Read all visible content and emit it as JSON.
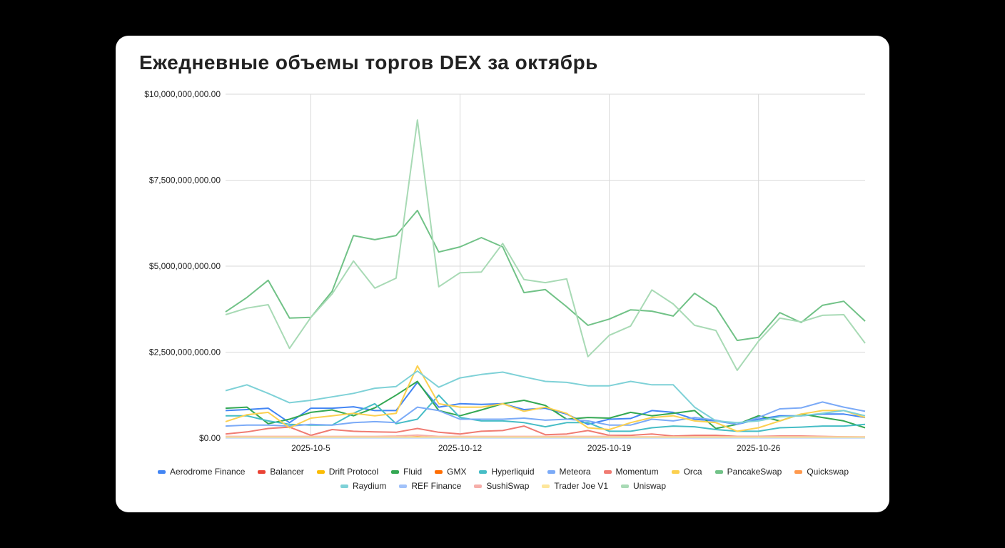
{
  "chart_data": {
    "type": "line",
    "title": "Ежедневные объемы торгов DEX за октябрь",
    "x": [
      "2025-10-1",
      "2025-10-2",
      "2025-10-3",
      "2025-10-4",
      "2025-10-5",
      "2025-10-6",
      "2025-10-7",
      "2025-10-8",
      "2025-10-9",
      "2025-10-10",
      "2025-10-11",
      "2025-10-12",
      "2025-10-13",
      "2025-10-14",
      "2025-10-15",
      "2025-10-16",
      "2025-10-17",
      "2025-10-18",
      "2025-10-19",
      "2025-10-20",
      "2025-10-21",
      "2025-10-22",
      "2025-10-23",
      "2025-10-24",
      "2025-10-25",
      "2025-10-26",
      "2025-10-27",
      "2025-10-28",
      "2025-10-29",
      "2025-10-30",
      "2025-10-31"
    ],
    "x_tick_labels": [
      "2025-10-5",
      "2025-10-12",
      "2025-10-19",
      "2025-10-26"
    ],
    "y_tick_labels": [
      "$0.00",
      "$2,500,000,000.00",
      "$5,000,000,000.00",
      "$7,500,000,000.00",
      "$10,000,000,000.00"
    ],
    "ylim": [
      0,
      10000000000
    ],
    "y_unit": "USD (values in billions)",
    "grid": true,
    "legend_position": "bottom",
    "series": [
      {
        "name": "Aerodrome Finance",
        "color": "#4285f4",
        "values": [
          0.8,
          0.83,
          0.87,
          0.45,
          0.87,
          0.87,
          0.91,
          0.8,
          0.8,
          1.62,
          0.9,
          1.0,
          0.98,
          1.0,
          0.83,
          0.87,
          0.7,
          0.4,
          0.55,
          0.57,
          0.8,
          0.75,
          0.55,
          0.5,
          0.4,
          0.55,
          0.65,
          0.65,
          0.7,
          0.7,
          0.6
        ]
      },
      {
        "name": "Balancer",
        "color": "#ea4335",
        "values": [
          0.02,
          0.02,
          0.02,
          0.02,
          0.02,
          0.02,
          0.02,
          0.02,
          0.02,
          0.03,
          0.02,
          0.02,
          0.02,
          0.02,
          0.02,
          0.02,
          0.02,
          0.02,
          0.02,
          0.02,
          0.02,
          0.02,
          0.02,
          0.02,
          0.02,
          0.02,
          0.02,
          0.02,
          0.02,
          0.02,
          0.02
        ]
      },
      {
        "name": "Drift Protocol",
        "color": "#fbbc04",
        "values": [
          0.01,
          0.01,
          0.01,
          0.01,
          0.01,
          0.01,
          0.01,
          0.01,
          0.01,
          0.02,
          0.01,
          0.01,
          0.01,
          0.01,
          0.01,
          0.01,
          0.01,
          0.01,
          0.01,
          0.01,
          0.01,
          0.01,
          0.01,
          0.01,
          0.01,
          0.01,
          0.01,
          0.01,
          0.01,
          0.01,
          0.01
        ]
      },
      {
        "name": "Fluid",
        "color": "#34a853",
        "values": [
          0.87,
          0.9,
          0.42,
          0.55,
          0.75,
          0.82,
          0.65,
          0.88,
          1.25,
          1.65,
          0.8,
          0.65,
          0.82,
          1.0,
          1.1,
          0.95,
          0.55,
          0.6,
          0.58,
          0.75,
          0.65,
          0.72,
          0.8,
          0.28,
          0.4,
          0.65,
          0.5,
          0.7,
          0.6,
          0.5,
          0.3
        ]
      },
      {
        "name": "GMX",
        "color": "#ff6d01",
        "values": [
          0.02,
          0.02,
          0.02,
          0.02,
          0.02,
          0.02,
          0.02,
          0.02,
          0.02,
          0.04,
          0.02,
          0.02,
          0.02,
          0.02,
          0.02,
          0.02,
          0.02,
          0.02,
          0.02,
          0.02,
          0.02,
          0.02,
          0.02,
          0.02,
          0.02,
          0.02,
          0.02,
          0.02,
          0.02,
          0.02,
          0.02
        ]
      },
      {
        "name": "Hyperliquid",
        "color": "#46bdc6",
        "values": [
          0.65,
          0.65,
          0.5,
          0.4,
          0.38,
          0.38,
          0.72,
          1.0,
          0.42,
          0.55,
          1.25,
          0.6,
          0.5,
          0.5,
          0.45,
          0.33,
          0.45,
          0.45,
          0.2,
          0.2,
          0.3,
          0.35,
          0.33,
          0.25,
          0.2,
          0.2,
          0.3,
          0.32,
          0.35,
          0.35,
          0.4
        ]
      },
      {
        "name": "Meteora",
        "color": "#7baaf7",
        "values": [
          0.35,
          0.38,
          0.38,
          0.35,
          0.4,
          0.38,
          0.45,
          0.48,
          0.45,
          0.9,
          0.8,
          0.55,
          0.55,
          0.55,
          0.58,
          0.52,
          0.55,
          0.5,
          0.38,
          0.38,
          0.55,
          0.5,
          0.6,
          0.52,
          0.4,
          0.6,
          0.85,
          0.88,
          1.05,
          0.9,
          0.78
        ]
      },
      {
        "name": "Momentum",
        "color": "#f07b72",
        "values": [
          0.12,
          0.18,
          0.28,
          0.32,
          0.08,
          0.25,
          0.2,
          0.18,
          0.17,
          0.28,
          0.17,
          0.12,
          0.2,
          0.22,
          0.35,
          0.1,
          0.12,
          0.22,
          0.08,
          0.08,
          0.12,
          0.06,
          0.08,
          0.08,
          0.05,
          0.05,
          0.06,
          0.06,
          0.05,
          0.04,
          0.03
        ]
      },
      {
        "name": "Orca",
        "color": "#fcd04f",
        "values": [
          0.48,
          0.68,
          0.75,
          0.3,
          0.58,
          0.65,
          0.72,
          0.65,
          0.72,
          2.1,
          1.0,
          0.9,
          0.9,
          1.0,
          0.78,
          0.9,
          0.72,
          0.3,
          0.25,
          0.45,
          0.6,
          0.65,
          0.5,
          0.45,
          0.2,
          0.3,
          0.5,
          0.7,
          0.8,
          0.8,
          0.6
        ]
      },
      {
        "name": "PancakeSwap",
        "color": "#71c287",
        "values": [
          3.67,
          4.09,
          4.59,
          3.49,
          3.51,
          4.27,
          5.89,
          5.77,
          5.89,
          6.62,
          5.41,
          5.56,
          5.83,
          5.56,
          4.23,
          4.32,
          3.82,
          3.28,
          3.46,
          3.73,
          3.69,
          3.55,
          4.21,
          3.8,
          2.84,
          2.93,
          3.65,
          3.36,
          3.86,
          3.98,
          3.4
        ]
      },
      {
        "name": "Quickswap",
        "color": "#ff994d",
        "values": [
          0.01,
          0.01,
          0.01,
          0.01,
          0.01,
          0.01,
          0.01,
          0.01,
          0.01,
          0.02,
          0.01,
          0.01,
          0.01,
          0.01,
          0.01,
          0.01,
          0.01,
          0.01,
          0.01,
          0.01,
          0.01,
          0.01,
          0.01,
          0.01,
          0.01,
          0.01,
          0.01,
          0.01,
          0.01,
          0.01,
          0.01
        ]
      },
      {
        "name": "Raydium",
        "color": "#7ed1d7",
        "values": [
          1.38,
          1.55,
          1.3,
          1.03,
          1.1,
          1.2,
          1.3,
          1.45,
          1.5,
          1.95,
          1.48,
          1.75,
          1.85,
          1.92,
          1.78,
          1.65,
          1.62,
          1.52,
          1.52,
          1.65,
          1.55,
          1.55,
          0.9,
          0.5,
          0.45,
          0.5,
          0.62,
          0.65,
          0.72,
          0.8,
          0.65
        ]
      },
      {
        "name": "REF Finance",
        "color": "#a1c2fa",
        "values": [
          0.01,
          0.01,
          0.01,
          0.01,
          0.01,
          0.01,
          0.01,
          0.01,
          0.01,
          0.01,
          0.01,
          0.01,
          0.01,
          0.01,
          0.01,
          0.01,
          0.01,
          0.01,
          0.01,
          0.01,
          0.01,
          0.01,
          0.01,
          0.01,
          0.01,
          0.01,
          0.01,
          0.01,
          0.01,
          0.01,
          0.01
        ]
      },
      {
        "name": "SushiSwap",
        "color": "#f6aea9",
        "values": [
          0.05,
          0.05,
          0.05,
          0.05,
          0.05,
          0.05,
          0.05,
          0.05,
          0.06,
          0.09,
          0.05,
          0.05,
          0.05,
          0.05,
          0.05,
          0.05,
          0.05,
          0.05,
          0.05,
          0.04,
          0.04,
          0.04,
          0.04,
          0.04,
          0.04,
          0.04,
          0.04,
          0.04,
          0.04,
          0.04,
          0.04
        ]
      },
      {
        "name": "Trader Joe V1",
        "color": "#fde69a",
        "values": [
          0.03,
          0.03,
          0.03,
          0.03,
          0.03,
          0.03,
          0.03,
          0.03,
          0.03,
          0.03,
          0.03,
          0.03,
          0.03,
          0.03,
          0.03,
          0.03,
          0.03,
          0.03,
          0.03,
          0.03,
          0.03,
          0.03,
          0.03,
          0.03,
          0.03,
          0.03,
          0.03,
          0.03,
          0.03,
          0.03,
          0.03
        ]
      },
      {
        "name": "Uniswap",
        "color": "#a8dab5",
        "values": [
          3.59,
          3.78,
          3.88,
          2.61,
          3.51,
          4.19,
          5.15,
          4.36,
          4.65,
          9.25,
          4.4,
          4.81,
          4.83,
          5.66,
          4.61,
          4.52,
          4.63,
          2.37,
          2.99,
          3.26,
          4.31,
          3.9,
          3.28,
          3.13,
          1.97,
          2.82,
          3.49,
          3.38,
          3.57,
          3.59,
          2.76
        ]
      }
    ]
  }
}
